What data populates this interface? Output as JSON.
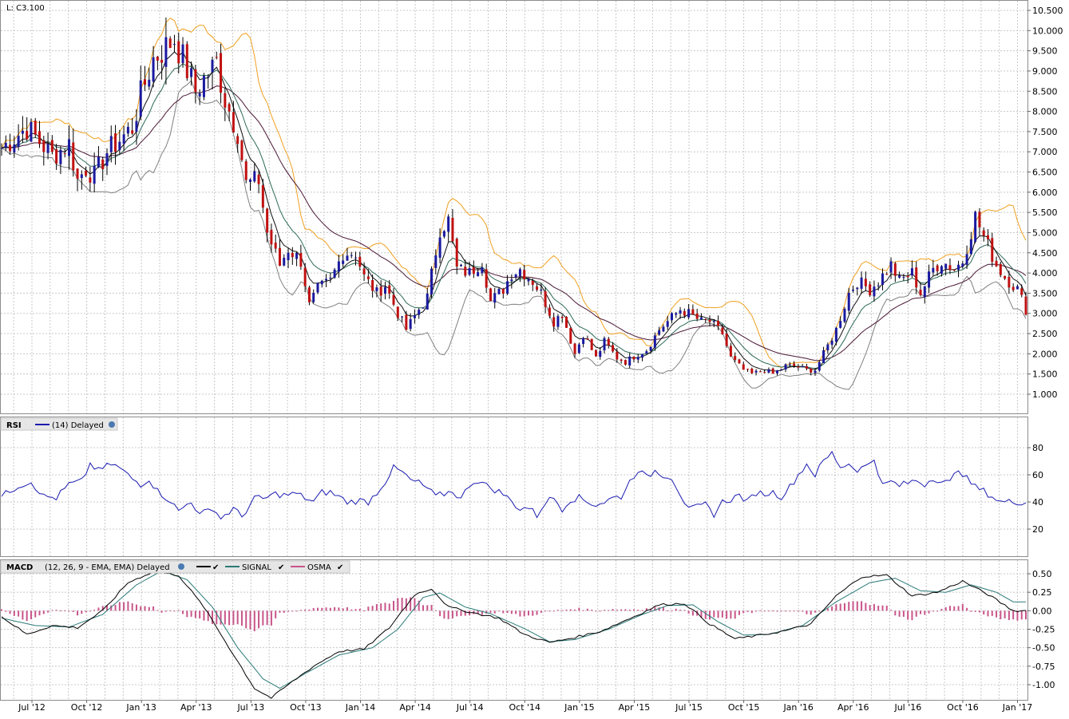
{
  "last_label": "L: C3.100",
  "colors": {
    "up_candle": "#1a1aa0",
    "down_candle": "#c01010",
    "ema_fast": "#101010",
    "ema_mid": "#2e6a5a",
    "sma_slow": "#4a1836",
    "band_upper": "#f0a020",
    "band_lower": "#808080",
    "rsi": "#1a1ab0",
    "macd": "#000000",
    "signal": "#2a7a78",
    "osma": "#c8558a",
    "grid": "#c8c8c8",
    "panel_border": "#8c8c8c"
  },
  "x_labels": [
    "Jul '12",
    "Oct '12",
    "Jan '13",
    "Apr '13",
    "Jul '13",
    "Oct '13",
    "Jan '14",
    "Apr '14",
    "Jul '14",
    "Oct '14",
    "Jan '15",
    "Apr '15",
    "Jul '15",
    "Oct '15",
    "Jan '16",
    "Apr '16",
    "Jul '16",
    "Oct '16",
    "Jan '17"
  ],
  "price_ticks": [
    "10.500",
    "10.000",
    "9.500",
    "9.000",
    "8.500",
    "8.000",
    "7.500",
    "7.000",
    "6.500",
    "6.000",
    "5.500",
    "5.000",
    "4.500",
    "4.000",
    "3.500",
    "3.000",
    "2.500",
    "2.000",
    "1.500",
    "1.000"
  ],
  "rsi_panel": {
    "title": "RSI",
    "legend": "(14) Delayed",
    "ticks": [
      "80",
      "60",
      "40",
      "20"
    ]
  },
  "macd_panel": {
    "title": "MACD",
    "legend": "(12, 26, 9 - EMA, EMA) Delayed",
    "signal_label": "SIGNAL",
    "osma_label": "OSMA",
    "ticks": [
      "0.50",
      "0.25",
      "0.00",
      "-0.25",
      "-0.50",
      "-0.75",
      "-1.00"
    ]
  },
  "chart_data": [
    {
      "type": "candlestick",
      "title": "",
      "y_axis": "price",
      "ylim": [
        0.5,
        10.6
      ],
      "x_tick_labels": [
        "Jul '12",
        "Oct '12",
        "Jan '13",
        "Apr '13",
        "Jul '13",
        "Oct '13",
        "Jan '14",
        "Apr '14",
        "Jul '14",
        "Oct '14",
        "Jan '15",
        "Apr '15",
        "Jul '15",
        "Oct '15",
        "Jan '16",
        "Apr '16",
        "Jul '16",
        "Oct '16",
        "Jan '17"
      ],
      "close_anchor_points": [
        [
          0,
          7.1
        ],
        [
          6,
          7.6
        ],
        [
          12,
          6.9
        ],
        [
          16,
          7.2
        ],
        [
          18,
          6.3
        ],
        [
          20,
          6.6
        ],
        [
          22,
          6.4
        ],
        [
          25,
          7.0
        ],
        [
          28,
          7.3
        ],
        [
          31,
          7.6
        ],
        [
          33,
          8.4
        ],
        [
          36,
          9.3
        ],
        [
          38,
          9.5
        ],
        [
          41,
          9.8
        ],
        [
          43,
          9.3
        ],
        [
          46,
          8.5
        ],
        [
          48,
          8.8
        ],
        [
          51,
          9.2
        ],
        [
          53,
          8.3
        ],
        [
          56,
          7.5
        ],
        [
          58,
          6.2
        ],
        [
          61,
          6.3
        ],
        [
          63,
          5.0
        ],
        [
          66,
          4.2
        ],
        [
          68,
          4.6
        ],
        [
          71,
          4.3
        ],
        [
          73,
          3.2
        ],
        [
          75,
          3.6
        ],
        [
          78,
          3.8
        ],
        [
          81,
          4.5
        ],
        [
          84,
          4.5
        ],
        [
          86,
          3.9
        ],
        [
          89,
          3.5
        ],
        [
          91,
          3.7
        ],
        [
          94,
          3.0
        ],
        [
          96,
          2.6
        ],
        [
          99,
          3.1
        ],
        [
          101,
          3.4
        ],
        [
          104,
          5.1
        ],
        [
          106,
          5.3
        ],
        [
          108,
          4.1
        ],
        [
          111,
          4.0
        ],
        [
          114,
          4.3
        ],
        [
          116,
          3.3
        ],
        [
          119,
          3.6
        ],
        [
          121,
          4.0
        ],
        [
          123,
          4.1
        ],
        [
          126,
          3.8
        ],
        [
          128,
          3.5
        ],
        [
          131,
          2.8
        ],
        [
          133,
          3.0
        ],
        [
          136,
          2.0
        ],
        [
          138,
          2.5
        ],
        [
          141,
          1.9
        ],
        [
          143,
          2.3
        ],
        [
          146,
          1.9
        ],
        [
          148,
          1.8
        ],
        [
          151,
          2.0
        ],
        [
          153,
          2.1
        ],
        [
          156,
          2.6
        ],
        [
          158,
          2.8
        ],
        [
          161,
          3.1
        ],
        [
          163,
          3.0
        ],
        [
          166,
          2.8
        ],
        [
          168,
          2.8
        ],
        [
          171,
          2.5
        ],
        [
          173,
          1.9
        ],
        [
          176,
          1.6
        ],
        [
          178,
          1.5
        ],
        [
          181,
          1.6
        ],
        [
          183,
          1.5
        ],
        [
          186,
          1.7
        ],
        [
          188,
          1.7
        ],
        [
          191,
          1.6
        ],
        [
          193,
          1.6
        ],
        [
          196,
          2.2
        ],
        [
          198,
          2.6
        ],
        [
          201,
          3.5
        ],
        [
          203,
          3.8
        ],
        [
          206,
          3.6
        ],
        [
          208,
          3.8
        ],
        [
          211,
          4.2
        ],
        [
          213,
          3.8
        ],
        [
          216,
          4.0
        ],
        [
          218,
          3.5
        ],
        [
          221,
          4.1
        ],
        [
          223,
          4.3
        ],
        [
          226,
          4.1
        ],
        [
          228,
          4.3
        ],
        [
          231,
          5.4
        ],
        [
          233,
          4.9
        ],
        [
          236,
          4.2
        ],
        [
          238,
          3.9
        ],
        [
          241,
          3.6
        ],
        [
          243,
          3.1
        ]
      ],
      "indicators": [
        "EMA (fast)",
        "EMA (mid)",
        "SMA (slow)",
        "Upper band",
        "Lower band"
      ]
    },
    {
      "type": "line",
      "name": "RSI",
      "ylim": [
        0,
        100
      ],
      "anchor_points": [
        [
          0,
          44
        ],
        [
          4,
          52
        ],
        [
          7,
          55
        ],
        [
          10,
          44
        ],
        [
          13,
          43
        ],
        [
          16,
          53
        ],
        [
          19,
          55
        ],
        [
          21,
          68
        ],
        [
          23,
          63
        ],
        [
          26,
          68
        ],
        [
          28,
          65
        ],
        [
          31,
          57
        ],
        [
          33,
          53
        ],
        [
          35,
          57
        ],
        [
          37,
          48
        ],
        [
          40,
          41
        ],
        [
          42,
          33
        ],
        [
          45,
          41
        ],
        [
          47,
          30
        ],
        [
          50,
          36
        ],
        [
          52,
          28
        ],
        [
          55,
          35
        ],
        [
          57,
          29
        ],
        [
          60,
          43
        ],
        [
          62,
          42
        ],
        [
          65,
          46
        ],
        [
          67,
          45
        ],
        [
          70,
          46
        ],
        [
          72,
          43
        ],
        [
          74,
          40
        ],
        [
          76,
          47
        ],
        [
          78,
          47
        ],
        [
          80,
          44
        ],
        [
          82,
          40
        ],
        [
          85,
          41
        ],
        [
          87,
          40
        ],
        [
          89,
          47
        ],
        [
          91,
          55
        ],
        [
          93,
          65
        ],
        [
          95,
          62
        ],
        [
          97,
          56
        ],
        [
          99,
          54
        ],
        [
          101,
          50
        ],
        [
          103,
          44
        ],
        [
          105,
          46
        ],
        [
          107,
          48
        ],
        [
          109,
          42
        ],
        [
          111,
          53
        ],
        [
          113,
          56
        ],
        [
          115,
          52
        ],
        [
          117,
          49
        ],
        [
          119,
          46
        ],
        [
          121,
          40
        ],
        [
          123,
          35
        ],
        [
          125,
          36
        ],
        [
          127,
          30
        ],
        [
          129,
          40
        ],
        [
          131,
          43
        ],
        [
          133,
          35
        ],
        [
          135,
          42
        ],
        [
          137,
          43
        ],
        [
          139,
          40
        ],
        [
          141,
          38
        ],
        [
          143,
          40
        ],
        [
          145,
          43
        ],
        [
          147,
          44
        ],
        [
          149,
          55
        ],
        [
          151,
          64
        ],
        [
          153,
          58
        ],
        [
          155,
          63
        ],
        [
          157,
          60
        ],
        [
          159,
          58
        ],
        [
          161,
          46
        ],
        [
          163,
          34
        ],
        [
          165,
          36
        ],
        [
          167,
          38
        ],
        [
          169,
          31
        ],
        [
          171,
          40
        ],
        [
          173,
          42
        ],
        [
          175,
          45
        ],
        [
          177,
          40
        ],
        [
          179,
          47
        ],
        [
          181,
          46
        ],
        [
          183,
          47
        ],
        [
          185,
          44
        ],
        [
          187,
          51
        ],
        [
          189,
          60
        ],
        [
          191,
          68
        ],
        [
          193,
          60
        ],
        [
          195,
          70
        ],
        [
          197,
          76
        ],
        [
          199,
          66
        ],
        [
          201,
          68
        ],
        [
          203,
          64
        ],
        [
          205,
          66
        ],
        [
          207,
          72
        ],
        [
          209,
          52
        ],
        [
          211,
          55
        ],
        [
          213,
          52
        ],
        [
          215,
          54
        ],
        [
          217,
          56
        ],
        [
          219,
          53
        ],
        [
          221,
          58
        ],
        [
          223,
          55
        ],
        [
          225,
          54
        ],
        [
          227,
          65
        ],
        [
          229,
          57
        ],
        [
          231,
          51
        ],
        [
          233,
          48
        ],
        [
          235,
          44
        ],
        [
          237,
          40
        ]
      ],
      "legend": "(14) Delayed"
    },
    {
      "type": "line",
      "name": "MACD",
      "ylim": [
        -1.2,
        0.55
      ],
      "macd_anchor_points": [
        [
          0,
          -0.08
        ],
        [
          6,
          -0.32
        ],
        [
          12,
          -0.2
        ],
        [
          18,
          -0.23
        ],
        [
          24,
          0.0
        ],
        [
          30,
          0.38
        ],
        [
          36,
          0.53
        ],
        [
          42,
          0.48
        ],
        [
          48,
          0.05
        ],
        [
          54,
          -0.5
        ],
        [
          60,
          -1.05
        ],
        [
          64,
          -1.18
        ],
        [
          68,
          -1.0
        ],
        [
          74,
          -0.75
        ],
        [
          80,
          -0.55
        ],
        [
          86,
          -0.52
        ],
        [
          92,
          -0.23
        ],
        [
          98,
          0.22
        ],
        [
          102,
          0.3
        ],
        [
          106,
          0.05
        ],
        [
          112,
          -0.03
        ],
        [
          118,
          -0.1
        ],
        [
          124,
          -0.32
        ],
        [
          130,
          -0.43
        ],
        [
          136,
          -0.36
        ],
        [
          142,
          -0.28
        ],
        [
          150,
          -0.08
        ],
        [
          156,
          0.08
        ],
        [
          162,
          0.1
        ],
        [
          168,
          -0.18
        ],
        [
          174,
          -0.38
        ],
        [
          180,
          -0.33
        ],
        [
          186,
          -0.27
        ],
        [
          192,
          -0.18
        ],
        [
          198,
          0.2
        ],
        [
          204,
          0.46
        ],
        [
          210,
          0.48
        ],
        [
          216,
          0.2
        ],
        [
          222,
          0.25
        ],
        [
          228,
          0.4
        ],
        [
          234,
          0.22
        ],
        [
          240,
          0.0
        ]
      ],
      "signal_anchor_points": [
        [
          0,
          -0.1
        ],
        [
          8,
          -0.2
        ],
        [
          16,
          -0.22
        ],
        [
          24,
          -0.05
        ],
        [
          32,
          0.35
        ],
        [
          38,
          0.54
        ],
        [
          44,
          0.42
        ],
        [
          50,
          0.05
        ],
        [
          56,
          -0.5
        ],
        [
          62,
          -0.92
        ],
        [
          66,
          -1.05
        ],
        [
          72,
          -0.85
        ],
        [
          80,
          -0.6
        ],
        [
          88,
          -0.5
        ],
        [
          94,
          -0.25
        ],
        [
          100,
          0.18
        ],
        [
          104,
          0.24
        ],
        [
          110,
          0.05
        ],
        [
          116,
          -0.04
        ],
        [
          124,
          -0.24
        ],
        [
          130,
          -0.42
        ],
        [
          136,
          -0.39
        ],
        [
          144,
          -0.25
        ],
        [
          152,
          -0.05
        ],
        [
          158,
          0.07
        ],
        [
          164,
          0.08
        ],
        [
          170,
          -0.15
        ],
        [
          176,
          -0.33
        ],
        [
          182,
          -0.32
        ],
        [
          190,
          -0.2
        ],
        [
          198,
          0.12
        ],
        [
          206,
          0.38
        ],
        [
          212,
          0.44
        ],
        [
          218,
          0.27
        ],
        [
          224,
          0.25
        ],
        [
          230,
          0.35
        ],
        [
          236,
          0.25
        ],
        [
          240,
          0.12
        ]
      ],
      "osma": "histogram = MACD - SIGNAL",
      "legend": "(12, 26, 9 - EMA, EMA) Delayed"
    }
  ]
}
